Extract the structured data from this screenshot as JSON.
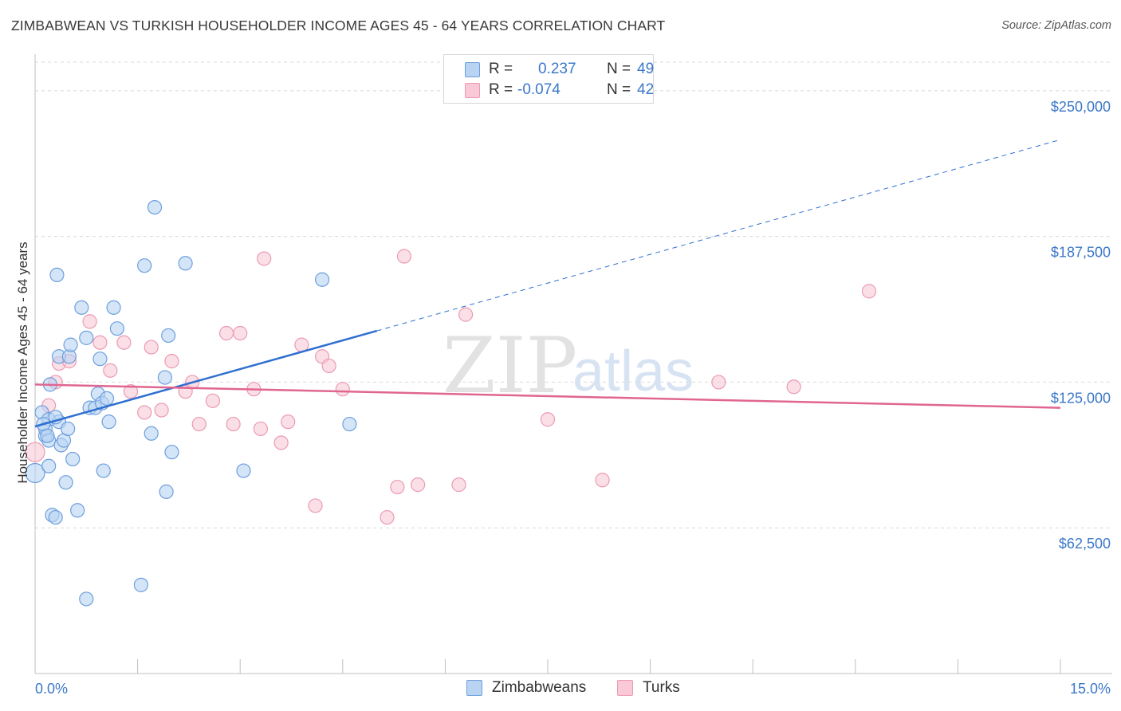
{
  "title": "ZIMBABWEAN VS TURKISH HOUSEHOLDER INCOME AGES 45 - 64 YEARS CORRELATION CHART",
  "source": "Source: ZipAtlas.com",
  "watermark": {
    "zip": "ZIP",
    "atlas": "atlas"
  },
  "legend": {
    "r_label": "R =",
    "n_label": "N =",
    "series": [
      {
        "name": "Zimbabweans",
        "r": "0.237",
        "n": "49",
        "fill": "#b9d3f3",
        "stroke": "#6d9fdc"
      },
      {
        "name": "Turks",
        "r": "-0.074",
        "n": "42",
        "fill": "#f9c9d7",
        "stroke": "#eb9ab3"
      }
    ]
  },
  "chart_data": {
    "type": "scatter",
    "title": "ZIMBABWEAN VS TURKISH HOUSEHOLDER INCOME AGES 45 - 64 YEARS CORRELATION CHART",
    "xlabel": "",
    "ylabel": "Householder Income Ages 45 - 64 years",
    "xlim": [
      0,
      15
    ],
    "ylim": [
      0,
      265000
    ],
    "x_tick_labels": [
      "0.0%",
      "15.0%"
    ],
    "y_ticks": [
      62500,
      125000,
      187500,
      250000
    ],
    "y_tick_labels": [
      "$62,500",
      "$125,000",
      "$187,500",
      "$250,000"
    ],
    "colors": {
      "blue": "#3b78c9",
      "blue_line": "#2f6fd0",
      "pink_line": "#e06690",
      "grid": "#d9d9d9",
      "axis": "#bfbfbf"
    },
    "series": [
      {
        "name": "Zimbabweans",
        "points": [
          [
            0.0,
            86000
          ],
          [
            0.1,
            112000
          ],
          [
            0.15,
            102000
          ],
          [
            0.2,
            109000
          ],
          [
            0.15,
            105000
          ],
          [
            0.2,
            100000
          ],
          [
            0.2,
            89000
          ],
          [
            0.22,
            124000
          ],
          [
            0.25,
            68000
          ],
          [
            0.3,
            67000
          ],
          [
            0.32,
            171000
          ],
          [
            0.35,
            108000
          ],
          [
            0.38,
            98000
          ],
          [
            0.35,
            136000
          ],
          [
            0.42,
            100000
          ],
          [
            0.45,
            82000
          ],
          [
            0.48,
            105000
          ],
          [
            0.5,
            136000
          ],
          [
            0.52,
            141000
          ],
          [
            0.55,
            92000
          ],
          [
            0.62,
            70000
          ],
          [
            0.68,
            157000
          ],
          [
            0.75,
            144000
          ],
          [
            0.8,
            114000
          ],
          [
            0.88,
            114000
          ],
          [
            0.92,
            120000
          ],
          [
            0.95,
            135000
          ],
          [
            0.98,
            116000
          ],
          [
            1.0,
            87000
          ],
          [
            1.05,
            118000
          ],
          [
            1.08,
            108000
          ],
          [
            1.15,
            157000
          ],
          [
            1.2,
            148000
          ],
          [
            1.55,
            38000
          ],
          [
            1.6,
            175000
          ],
          [
            1.7,
            103000
          ],
          [
            1.75,
            200000
          ],
          [
            1.9,
            127000
          ],
          [
            1.92,
            78000
          ],
          [
            1.95,
            145000
          ],
          [
            2.0,
            95000
          ],
          [
            2.2,
            176000
          ],
          [
            3.05,
            87000
          ],
          [
            4.2,
            169000
          ],
          [
            4.6,
            107000
          ],
          [
            0.75,
            32000
          ],
          [
            0.12,
            107000
          ],
          [
            0.18,
            102000
          ],
          [
            0.3,
            110000
          ]
        ]
      },
      {
        "name": "Turks",
        "points": [
          [
            0.0,
            95000
          ],
          [
            0.2,
            115000
          ],
          [
            0.3,
            125000
          ],
          [
            0.35,
            133000
          ],
          [
            0.5,
            134000
          ],
          [
            0.8,
            151000
          ],
          [
            0.95,
            142000
          ],
          [
            1.1,
            130000
          ],
          [
            1.3,
            142000
          ],
          [
            1.4,
            121000
          ],
          [
            1.6,
            112000
          ],
          [
            1.7,
            140000
          ],
          [
            1.85,
            113000
          ],
          [
            2.0,
            134000
          ],
          [
            2.2,
            121000
          ],
          [
            2.3,
            125000
          ],
          [
            2.4,
            107000
          ],
          [
            2.6,
            117000
          ],
          [
            2.8,
            146000
          ],
          [
            2.9,
            107000
          ],
          [
            3.0,
            146000
          ],
          [
            3.2,
            122000
          ],
          [
            3.3,
            105000
          ],
          [
            3.35,
            178000
          ],
          [
            3.6,
            99000
          ],
          [
            3.7,
            108000
          ],
          [
            3.9,
            141000
          ],
          [
            4.1,
            72000
          ],
          [
            4.2,
            136000
          ],
          [
            4.3,
            132000
          ],
          [
            4.5,
            122000
          ],
          [
            5.15,
            67000
          ],
          [
            5.3,
            80000
          ],
          [
            5.4,
            179000
          ],
          [
            5.6,
            81000
          ],
          [
            6.2,
            81000
          ],
          [
            6.3,
            154000
          ],
          [
            7.5,
            109000
          ],
          [
            8.3,
            83000
          ],
          [
            10.0,
            125000
          ],
          [
            11.1,
            123000
          ],
          [
            12.2,
            164000
          ]
        ]
      }
    ],
    "trend_lines": [
      {
        "series": "Zimbabweans",
        "from": [
          0,
          106000
        ],
        "to": [
          5.0,
          147000
        ],
        "dashed_to": [
          15.0,
          229000
        ]
      },
      {
        "series": "Turks",
        "from": [
          0,
          124000
        ],
        "to": [
          15.0,
          114000
        ]
      }
    ]
  }
}
